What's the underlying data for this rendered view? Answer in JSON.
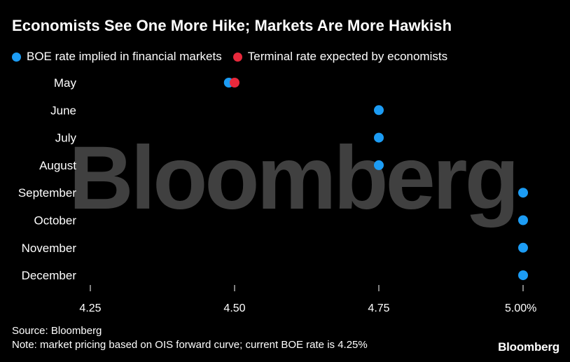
{
  "title": "Economists See One More Hike; Markets Are More Hawkish",
  "watermark": "Bloomberg",
  "footer": {
    "source": "Source: Bloomberg",
    "note": "Note: market pricing based on OIS forward curve; current BOE rate is 4.25%"
  },
  "brand": "Bloomberg",
  "chart_data": {
    "type": "scatter",
    "categories": [
      "May",
      "June",
      "July",
      "August",
      "September",
      "October",
      "November",
      "December"
    ],
    "series": [
      {
        "name": "BOE rate implied in financial markets",
        "color": "#1c9cf4",
        "values": [
          4.49,
          4.75,
          4.75,
          4.75,
          5.0,
          5.0,
          5.0,
          5.0
        ]
      },
      {
        "name": "Terminal rate expected by economists",
        "color": "#e8293c",
        "values": [
          4.5,
          null,
          null,
          null,
          null,
          null,
          null,
          null
        ]
      }
    ],
    "xlim": [
      4.25,
      5.0
    ],
    "xticks": [
      4.25,
      4.5,
      4.75,
      5.0
    ],
    "xtick_labels": [
      "4.25",
      "4.50",
      "4.75",
      "5.00%"
    ],
    "legend_position": "top-left",
    "grid": false
  }
}
